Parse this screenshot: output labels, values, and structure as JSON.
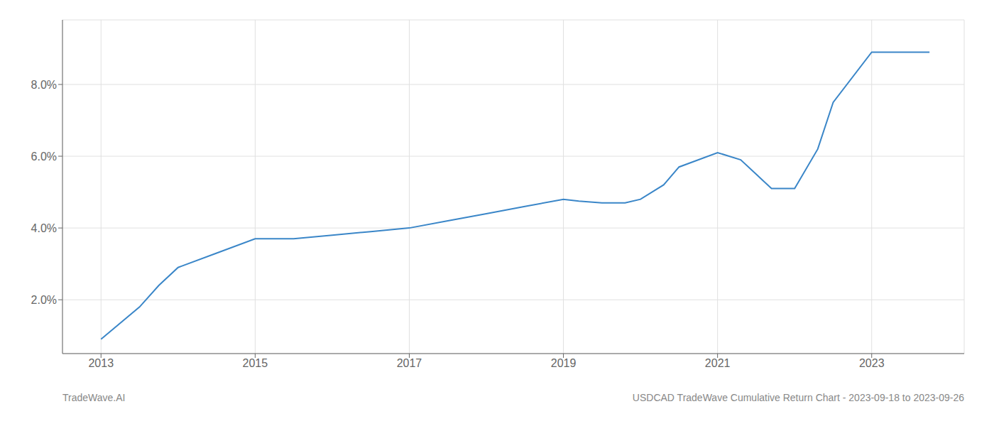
{
  "chart_data": {
    "type": "line",
    "x": [
      2013.0,
      2013.5,
      2013.75,
      2014.0,
      2014.5,
      2015.0,
      2015.5,
      2016.0,
      2016.5,
      2017.0,
      2017.5,
      2018.0,
      2018.5,
      2019.0,
      2019.2,
      2019.5,
      2019.8,
      2020.0,
      2020.3,
      2020.5,
      2021.0,
      2021.3,
      2021.5,
      2021.7,
      2022.0,
      2022.3,
      2022.5,
      2023.0,
      2023.5,
      2023.75
    ],
    "values": [
      0.009,
      0.018,
      0.024,
      0.029,
      0.033,
      0.037,
      0.037,
      0.038,
      0.039,
      0.04,
      0.042,
      0.044,
      0.046,
      0.048,
      0.0475,
      0.047,
      0.047,
      0.048,
      0.052,
      0.057,
      0.061,
      0.059,
      0.055,
      0.051,
      0.051,
      0.062,
      0.075,
      0.089,
      0.089,
      0.089
    ],
    "color": "#3a86c8",
    "xlim": [
      2012.5,
      2024.2
    ],
    "xticks": [
      2013,
      2015,
      2017,
      2019,
      2021,
      2023
    ],
    "ylim": [
      0.005,
      0.098
    ],
    "yticks": [
      {
        "value": 0.02,
        "label": "2.0%"
      },
      {
        "value": 0.04,
        "label": "4.0%"
      },
      {
        "value": 0.06,
        "label": "6.0%"
      },
      {
        "value": 0.08,
        "label": "8.0%"
      }
    ],
    "grid": true,
    "annotations": [
      "TradeWave.AI",
      "USDCAD TradeWave Cumulative Return Chart - 2023-09-18 to 2023-09-26"
    ]
  }
}
